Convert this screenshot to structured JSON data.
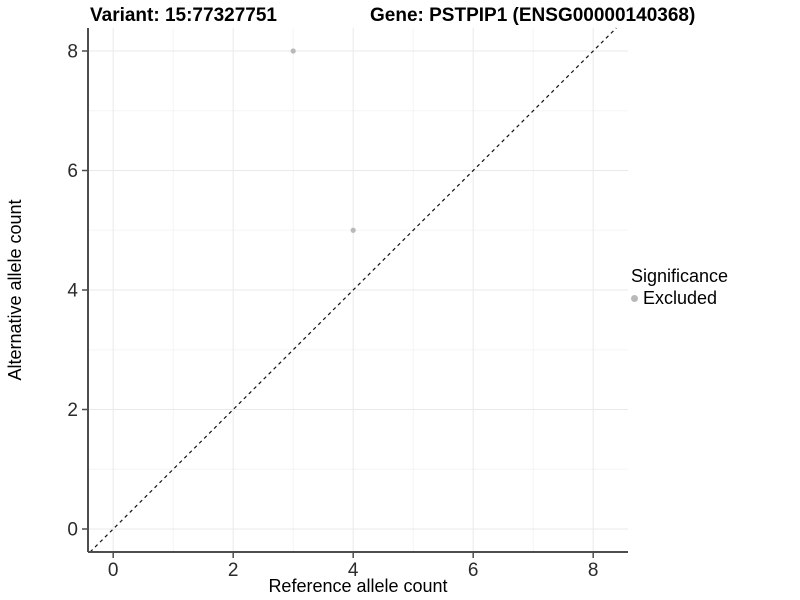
{
  "titles": {
    "variant": "Variant: 15:77327751",
    "gene": "Gene: PSTPIP1 (ENSG00000140368)"
  },
  "colors": {
    "background": "#ffffff",
    "grid_major": "#e9e9e9",
    "grid_minor": "#f5f5f5",
    "axis_line": "#4d4d4d",
    "tick_text": "#2b2b2b",
    "reference_line": "#111111",
    "point": "#b9b9b9"
  },
  "chart_data": {
    "type": "scatter",
    "title_left": "Variant: 15:77327751",
    "title_right": "Gene: PSTPIP1 (ENSG00000140368)",
    "xlabel": "Reference allele count",
    "ylabel": "Alternative allele count",
    "xlim": [
      -0.42,
      8.58
    ],
    "ylim": [
      -0.385,
      8.385
    ],
    "x_ticks": [
      0,
      2,
      4,
      6,
      8
    ],
    "y_ticks": [
      0,
      2,
      4,
      6,
      8
    ],
    "x_minor_ticks": [
      1,
      3,
      5,
      7
    ],
    "y_minor_ticks": [
      1,
      3,
      5,
      7
    ],
    "grid": true,
    "series": [
      {
        "name": "Excluded",
        "color": "#b9b9b9",
        "point_radius": 2.6,
        "points": [
          {
            "x": 3,
            "y": 8
          },
          {
            "x": 4,
            "y": 5
          }
        ]
      }
    ],
    "reference_line": {
      "description": "identity line y = x",
      "style": "dashed",
      "color": "#111111",
      "from": -0.385,
      "to": 8.385
    },
    "legend": {
      "title": "Significance",
      "position": "right",
      "items": [
        {
          "label": "Excluded",
          "color": "#b9b9b9"
        }
      ]
    }
  }
}
